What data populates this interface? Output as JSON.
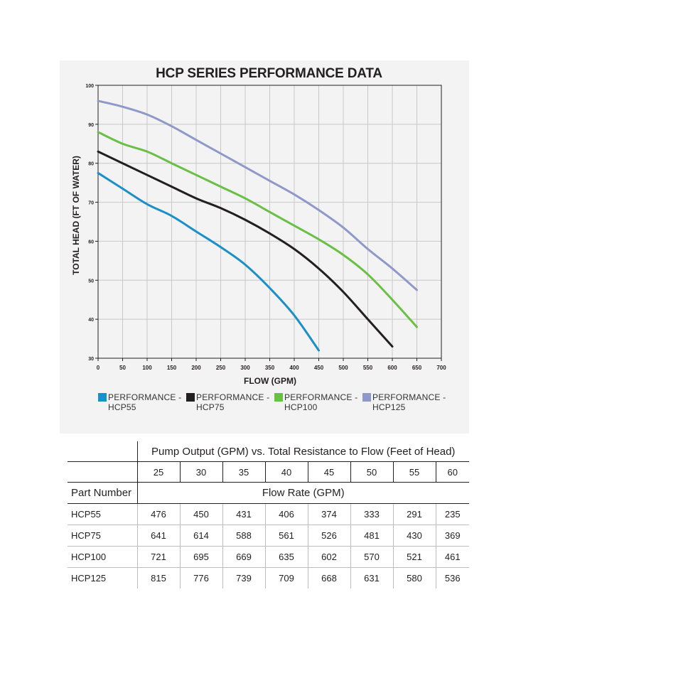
{
  "chart_data": {
    "type": "line",
    "title": "HCP SERIES PERFORMANCE DATA",
    "xlabel": "FLOW (GPM)",
    "ylabel": "TOTAL HEAD (FT OF WATER)",
    "xlim": [
      0,
      700
    ],
    "ylim": [
      30,
      100
    ],
    "xticks": [
      "0",
      "50",
      "100",
      "150",
      "200",
      "250",
      "300",
      "350",
      "400",
      "450",
      "500",
      "550",
      "600",
      "650",
      "700"
    ],
    "yticks": [
      "30",
      "40",
      "50",
      "60",
      "70",
      "80",
      "90",
      "100"
    ],
    "grid": true,
    "legend_position": "bottom",
    "series": [
      {
        "name": "PERFORMANCE -\nHCP55",
        "color": "#1a8fc8",
        "x": [
          0,
          50,
          100,
          150,
          200,
          250,
          300,
          350,
          400,
          450
        ],
        "y": [
          77.5,
          73.5,
          69.5,
          66.5,
          62.5,
          58.5,
          54,
          48,
          41,
          32
        ]
      },
      {
        "name": "PERFORMANCE -\nHCP75",
        "color": "#231f20",
        "x": [
          0,
          50,
          100,
          150,
          200,
          250,
          300,
          350,
          400,
          450,
          500,
          550,
          600
        ],
        "y": [
          83,
          80,
          77,
          74,
          71,
          68.5,
          65.5,
          62,
          58,
          53,
          47,
          40,
          33
        ]
      },
      {
        "name": "PERFORMANCE -\nHCP100",
        "color": "#6abf45",
        "x": [
          0,
          50,
          100,
          150,
          200,
          250,
          300,
          350,
          400,
          450,
          500,
          550,
          600,
          650
        ],
        "y": [
          88,
          85,
          83,
          80,
          77,
          74,
          71,
          67.5,
          64,
          60.5,
          56.5,
          51.5,
          45,
          38
        ]
      },
      {
        "name": "PERFORMANCE -\nHCP125",
        "color": "#8f99c9",
        "x": [
          0,
          50,
          100,
          150,
          200,
          250,
          300,
          350,
          400,
          450,
          500,
          550,
          600,
          650
        ],
        "y": [
          96,
          94.5,
          92.5,
          89.5,
          86,
          82.5,
          79,
          75.5,
          72,
          68,
          63.5,
          58,
          53,
          47.5
        ]
      }
    ]
  },
  "table": {
    "caption": "Pump Output (GPM) vs. Total Resistance to Flow (Feet of Head)",
    "head_values": [
      "25",
      "30",
      "35",
      "40",
      "45",
      "50",
      "55",
      "60"
    ],
    "part_number_label": "Part Number",
    "flow_rate_label": "Flow Rate (GPM)",
    "rows": [
      {
        "name": "HCP55",
        "values": [
          "476",
          "450",
          "431",
          "406",
          "374",
          "333",
          "291",
          "235"
        ]
      },
      {
        "name": "HCP75",
        "values": [
          "641",
          "614",
          "588",
          "561",
          "526",
          "481",
          "430",
          "369"
        ]
      },
      {
        "name": "HCP100",
        "values": [
          "721",
          "695",
          "669",
          "635",
          "602",
          "570",
          "521",
          "461"
        ]
      },
      {
        "name": "HCP125",
        "values": [
          "815",
          "776",
          "739",
          "709",
          "668",
          "631",
          "580",
          "536"
        ]
      }
    ]
  },
  "colors": {
    "background_panel": "#f3f3f3",
    "grid": "#c8c8c8",
    "axis": "#231f20"
  }
}
